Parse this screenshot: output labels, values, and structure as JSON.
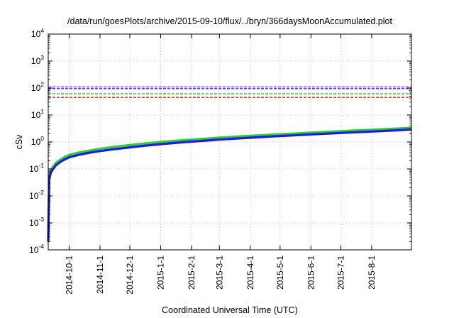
{
  "chart_data": {
    "type": "line",
    "title": "/data/run/goesPlots/archive/2015-09-10/flux/../bryn/366daysMoonAccumulated.plot",
    "xlabel": "Coordinated Universal Time (UTC)",
    "ylabel": "cSv",
    "yscale": "log",
    "ylim": [
      0.0001,
      10000
    ],
    "y_ticks": [
      {
        "value": 0.0001,
        "base": "10",
        "exp": "-4"
      },
      {
        "value": 0.001,
        "base": "10",
        "exp": "-3"
      },
      {
        "value": 0.01,
        "base": "10",
        "exp": "-2"
      },
      {
        "value": 0.1,
        "base": "10",
        "exp": "-1"
      },
      {
        "value": 1,
        "base": "10",
        "exp": "0"
      },
      {
        "value": 10,
        "base": "10",
        "exp": "1"
      },
      {
        "value": 100,
        "base": "10",
        "exp": "2"
      },
      {
        "value": 1000,
        "base": "10",
        "exp": "3"
      },
      {
        "value": 10000,
        "base": "10",
        "exp": "4"
      }
    ],
    "xlim": [
      "2014-09-10",
      "2015-09-10"
    ],
    "x_ticks": [
      "2014-10-1",
      "2014-11-1",
      "2014-12-1",
      "2015-1-1",
      "2015-2-1",
      "2015-3-1",
      "2015-4-1",
      "2015-5-1",
      "2015-6-1",
      "2015-7-1",
      "2015-8-1"
    ],
    "grid": true,
    "limit_lines": [
      {
        "value": 110,
        "color": "#9b30d9",
        "style": "dashed"
      },
      {
        "value": 95,
        "color": "#2a2ae0",
        "style": "dashed"
      },
      {
        "value": 62,
        "color": "#22cc22",
        "style": "dashed"
      },
      {
        "value": 45,
        "color": "#e02020",
        "style": "dashed"
      }
    ],
    "series": [
      {
        "color": "#33cc33",
        "x": [
          "2014-09-10",
          "2014-09-11",
          "2014-09-12",
          "2014-09-13",
          "2014-09-15",
          "2014-09-18",
          "2014-09-22",
          "2014-09-26",
          "2014-10-01",
          "2014-10-10",
          "2014-10-20",
          "2014-11-01",
          "2014-11-15",
          "2014-12-01",
          "2014-12-15",
          "2015-01-01",
          "2015-01-15",
          "2015-02-01",
          "2015-02-15",
          "2015-03-01",
          "2015-03-15",
          "2015-04-01",
          "2015-04-15",
          "2015-05-01",
          "2015-05-15",
          "2015-06-01",
          "2015-06-15",
          "2015-07-01",
          "2015-07-15",
          "2015-08-01",
          "2015-08-15",
          "2015-09-01",
          "2015-09-10"
        ],
        "values": [
          0.0003,
          0.05,
          0.075,
          0.095,
          0.125,
          0.17,
          0.22,
          0.27,
          0.33,
          0.4,
          0.47,
          0.56,
          0.66,
          0.77,
          0.87,
          1.0,
          1.1,
          1.23,
          1.33,
          1.45,
          1.56,
          1.7,
          1.8,
          1.95,
          2.06,
          2.22,
          2.36,
          2.52,
          2.66,
          2.84,
          3.0,
          3.22,
          3.38
        ]
      },
      {
        "color": "#1a1aee",
        "x": [
          "2014-09-10",
          "2014-09-11",
          "2014-09-12",
          "2014-09-13",
          "2014-09-15",
          "2014-09-18",
          "2014-09-22",
          "2014-09-26",
          "2014-10-01",
          "2014-10-10",
          "2014-10-20",
          "2014-11-01",
          "2014-11-15",
          "2014-12-01",
          "2014-12-15",
          "2015-01-01",
          "2015-01-15",
          "2015-02-01",
          "2015-02-15",
          "2015-03-01",
          "2015-03-15",
          "2015-04-01",
          "2015-04-15",
          "2015-05-01",
          "2015-05-15",
          "2015-06-01",
          "2015-06-15",
          "2015-07-01",
          "2015-07-15",
          "2015-08-01",
          "2015-08-15",
          "2015-09-01",
          "2015-09-10"
        ],
        "values": [
          0.0002,
          0.04,
          0.06,
          0.078,
          0.1,
          0.14,
          0.18,
          0.22,
          0.27,
          0.33,
          0.39,
          0.46,
          0.54,
          0.63,
          0.72,
          0.83,
          0.92,
          1.03,
          1.12,
          1.22,
          1.32,
          1.44,
          1.54,
          1.66,
          1.76,
          1.9,
          2.02,
          2.16,
          2.28,
          2.44,
          2.58,
          2.78,
          2.9
        ]
      }
    ]
  }
}
